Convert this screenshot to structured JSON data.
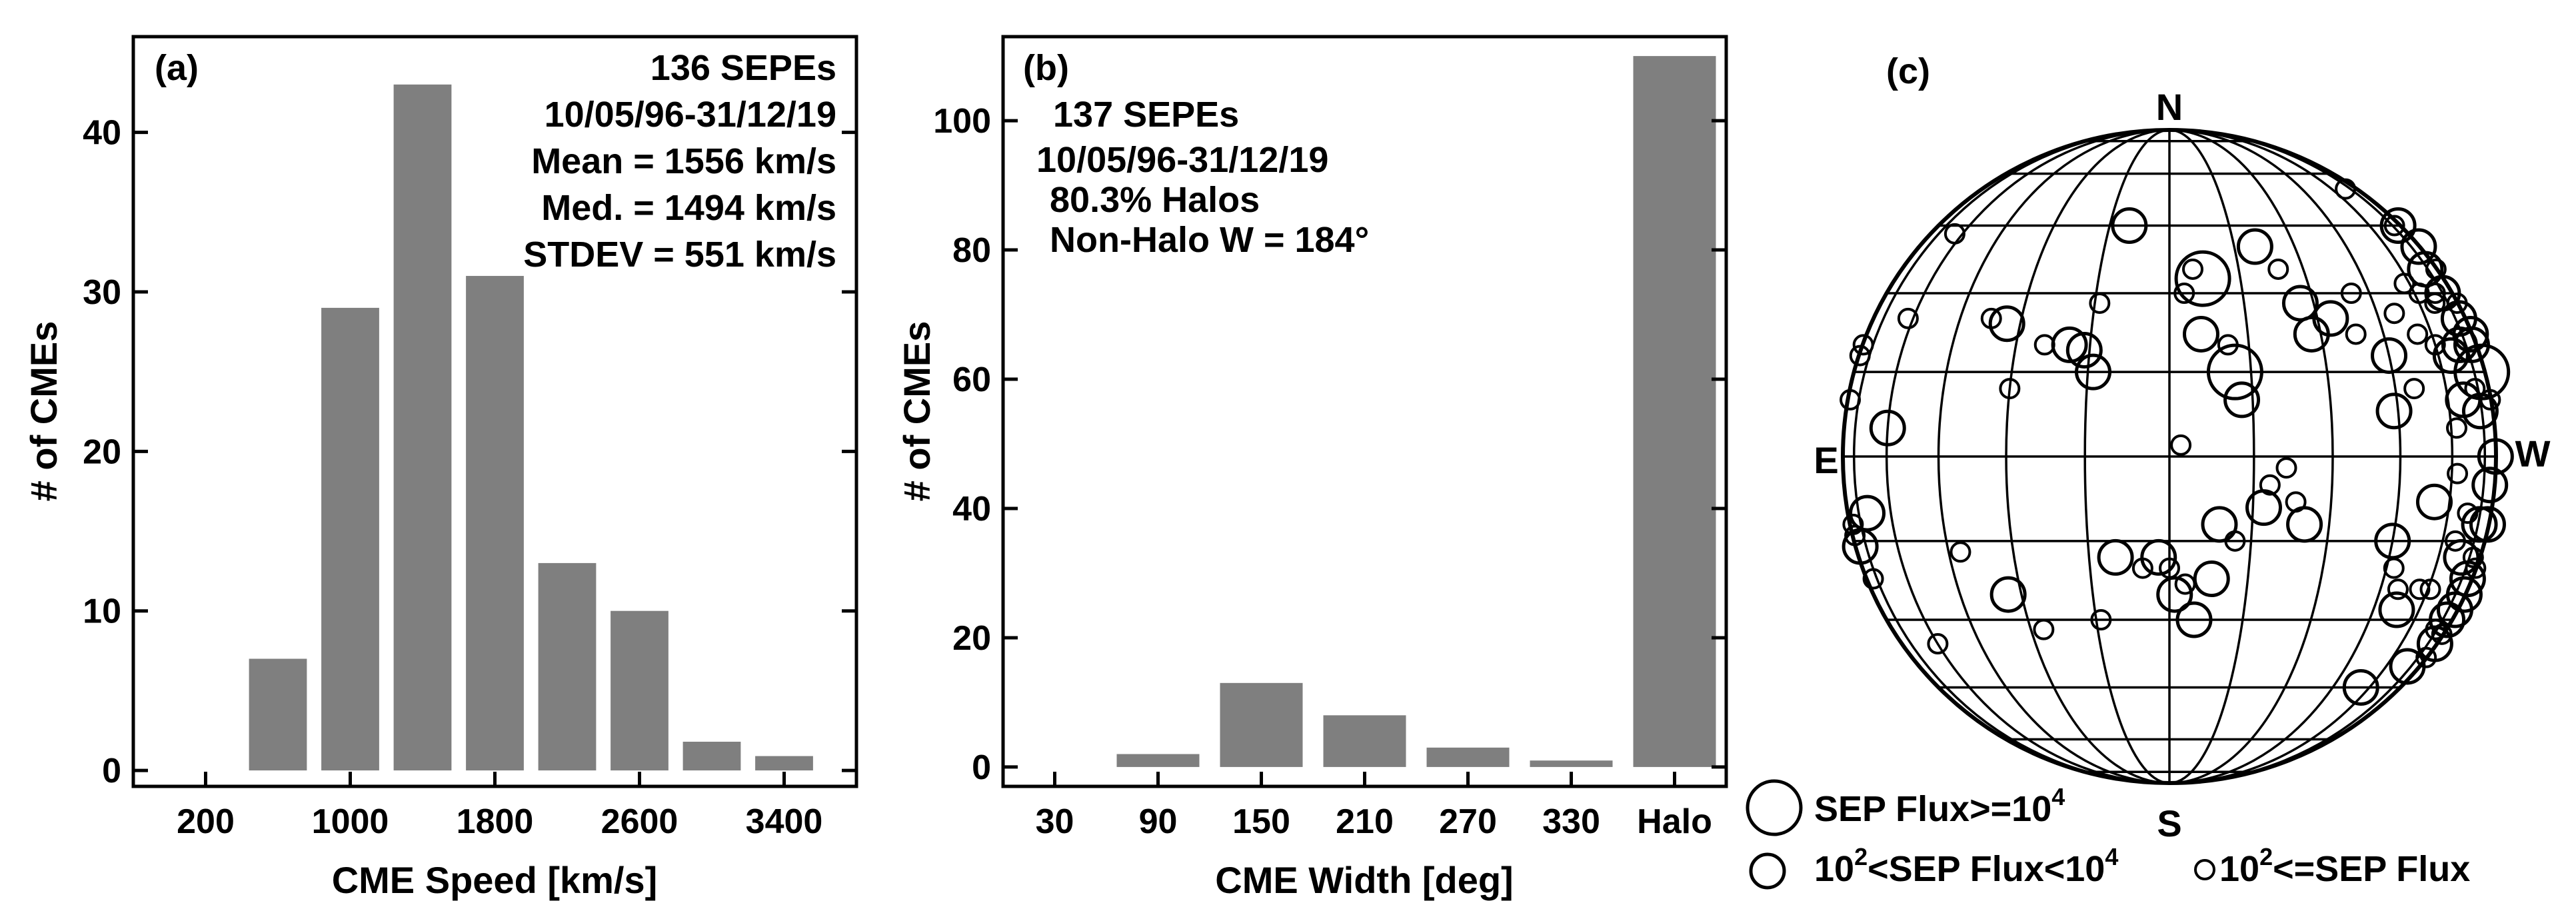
{
  "chart_data": [
    {
      "type": "bar",
      "panel_label": "(a)",
      "xlabel": "CME Speed [km/s]",
      "ylabel": "# of CMEs",
      "xticks": [
        200,
        1000,
        1800,
        2600,
        3400
      ],
      "yticks": [
        0,
        10,
        20,
        30,
        40
      ],
      "xlim": [
        -200,
        3800
      ],
      "ylim": [
        -1,
        46
      ],
      "bin_width": 400,
      "bin_centers": [
        600,
        1000,
        1400,
        1800,
        2200,
        2600,
        3000,
        3400
      ],
      "values": [
        7,
        29,
        43,
        31,
        13,
        10,
        1.8,
        0.9
      ],
      "annotations": [
        "136 SEPEs",
        "10/05/96-31/12/19",
        "Mean = 1556 km/s",
        "Med. = 1494 km/s",
        "STDEV = 551 km/s"
      ]
    },
    {
      "type": "bar",
      "panel_label": "(b)",
      "xlabel": "CME Width [deg]",
      "ylabel": "# of CMEs",
      "categories": [
        "30",
        "90",
        "150",
        "210",
        "270",
        "330",
        "Halo"
      ],
      "yticks": [
        0,
        20,
        40,
        60,
        80,
        100
      ],
      "ylim": [
        -3,
        113
      ],
      "values": [
        0,
        2,
        13,
        8,
        3,
        1,
        110
      ],
      "annotations": [
        "137 SEPEs",
        "10/05/96-31/12/19",
        "80.3% Halos",
        "Non-Halo W = 184°"
      ]
    },
    {
      "type": "scatter",
      "panel_label": "(c)",
      "projection": "solar-disk",
      "directions": {
        "N": "N",
        "S": "S",
        "E": "E",
        "W": "W"
      },
      "legend": {
        "large": "SEP Flux>=10",
        "large_exp": "4",
        "medium_pre": "10",
        "medium_pre_exp": "2",
        "medium_mid": "<SEP Flux<10",
        "medium_mid_exp": "4",
        "small_pre": "10",
        "small_pre_exp": "2",
        "small_post": "<=SEP Flux"
      },
      "points_lon_lat_size": [
        [
          -86,
          20,
          "s"
        ],
        [
          -85,
          18,
          "s"
        ],
        [
          -83,
          10,
          "s"
        ],
        [
          -62,
          25,
          "s"
        ],
        [
          -64,
          43,
          "s"
        ],
        [
          -60,
          5,
          "m"
        ],
        [
          -70,
          -10,
          "m"
        ],
        [
          -82,
          -12,
          "s"
        ],
        [
          -83,
          -14,
          "s"
        ],
        [
          -80,
          -16,
          "m"
        ],
        [
          -78,
          -22,
          "s"
        ],
        [
          -60,
          -35,
          "s"
        ],
        [
          -42,
          -17,
          "s"
        ],
        [
          -33,
          -25,
          "m"
        ],
        [
          -27,
          -32,
          "s"
        ],
        [
          -37,
          25,
          "s"
        ],
        [
          -33,
          24,
          "m"
        ],
        [
          -24,
          20,
          "s"
        ],
        [
          -19,
          20,
          "m"
        ],
        [
          -16,
          19,
          "m"
        ],
        [
          -14,
          15,
          "m"
        ],
        [
          -14,
          28,
          "s"
        ],
        [
          -30,
          12,
          "s"
        ],
        [
          -10,
          -18,
          "m"
        ],
        [
          -14,
          -30,
          "s"
        ],
        [
          -10,
          45,
          "m"
        ],
        [
          -5,
          -20,
          "s"
        ],
        [
          -2,
          -18,
          "m"
        ],
        [
          0,
          -20,
          "s"
        ],
        [
          1,
          -25,
          "m"
        ],
        [
          3,
          -23,
          "s"
        ],
        [
          5,
          -30,
          "m"
        ],
        [
          8,
          -22,
          "m"
        ],
        [
          9,
          -12,
          "m"
        ],
        [
          12,
          -15,
          "s"
        ],
        [
          6,
          22,
          "m"
        ],
        [
          3,
          30,
          "s"
        ],
        [
          5,
          35,
          "s"
        ],
        [
          7,
          33,
          "l"
        ],
        [
          12,
          15,
          "l"
        ],
        [
          11,
          20,
          "s"
        ],
        [
          13,
          10,
          "m"
        ],
        [
          2,
          2,
          "s"
        ],
        [
          18,
          -5,
          "s"
        ],
        [
          17,
          -9,
          "m"
        ],
        [
          21,
          -2,
          "s"
        ],
        [
          23,
          -8,
          "s"
        ],
        [
          25,
          -12,
          "m"
        ],
        [
          20,
          40,
          "m"
        ],
        [
          24,
          35,
          "s"
        ],
        [
          27,
          28,
          "m"
        ],
        [
          28,
          22,
          "m"
        ],
        [
          33,
          25,
          "m"
        ],
        [
          40,
          30,
          "s"
        ],
        [
          38,
          22,
          "s"
        ],
        [
          45,
          18,
          "m"
        ],
        [
          44,
          8,
          "m"
        ],
        [
          45,
          -15,
          "m"
        ],
        [
          47,
          -20,
          "s"
        ],
        [
          50,
          -24,
          "s"
        ],
        [
          52,
          -28,
          "m"
        ],
        [
          57,
          -24,
          "s"
        ],
        [
          61,
          -24,
          "s"
        ],
        [
          55,
          -8,
          "m"
        ],
        [
          62,
          -3,
          "s"
        ],
        [
          68,
          -10,
          "s"
        ],
        [
          70,
          -18,
          "m"
        ],
        [
          74,
          -32,
          "s"
        ],
        [
          56,
          -45,
          "m"
        ],
        [
          50,
          12,
          "s"
        ],
        [
          50,
          26,
          "s"
        ],
        [
          55,
          22,
          "s"
        ],
        [
          60,
          20,
          "s"
        ],
        [
          65,
          18,
          "m"
        ],
        [
          62,
          30,
          "s"
        ],
        [
          70,
          30,
          "s"
        ],
        [
          73,
          35,
          "m"
        ],
        [
          75,
          30,
          "m"
        ],
        [
          78,
          25,
          "m"
        ],
        [
          80,
          20,
          "m"
        ],
        [
          82,
          15,
          "l"
        ],
        [
          80,
          -5,
          "m"
        ],
        [
          76,
          -12,
          "m"
        ],
        [
          78,
          -18,
          "s"
        ],
        [
          80,
          -22,
          "m"
        ],
        [
          82,
          -28,
          "m"
        ],
        [
          79,
          -30,
          "m"
        ],
        [
          84,
          -33,
          "s"
        ],
        [
          70,
          55,
          "s"
        ],
        [
          77,
          45,
          "s"
        ],
        [
          82,
          45,
          "m"
        ],
        [
          85,
          40,
          "m"
        ],
        [
          85,
          35,
          "s"
        ],
        [
          86,
          28,
          "s"
        ],
        [
          84,
          22,
          "m"
        ],
        [
          86,
          10,
          "s"
        ],
        [
          87,
          0,
          "m"
        ],
        [
          85,
          -12,
          "m"
        ],
        [
          86,
          -20,
          "s"
        ],
        [
          85,
          -25,
          "m"
        ],
        [
          83,
          -35,
          "m"
        ],
        [
          86,
          -38,
          "s"
        ],
        [
          72,
          -40,
          "m"
        ],
        [
          74,
          8,
          "m"
        ],
        [
          66,
          10,
          "m"
        ],
        [
          65,
          -15,
          "s"
        ],
        [
          62,
          5,
          "s"
        ],
        [
          58,
          32,
          "s"
        ],
        [
          67,
          28,
          "s"
        ],
        [
          71,
          20,
          "m"
        ],
        [
          73,
          12,
          "s"
        ]
      ]
    }
  ]
}
